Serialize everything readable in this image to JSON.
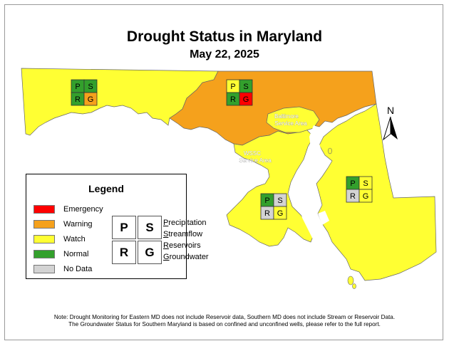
{
  "title": "Drought Status in Maryland",
  "date": "May 22, 2025",
  "north_label": "N",
  "colors": {
    "emergency": "#ff0000",
    "warning": "#f5a11c",
    "watch": "#ffff33",
    "normal": "#33a02c",
    "no_data": "#d3d3d3"
  },
  "map_labels": {
    "baltimore": [
      "Baltimore",
      "Service Area"
    ],
    "wssc": [
      "WSSC",
      "Service Area"
    ]
  },
  "regions": {
    "western": {
      "P": "normal",
      "S": "normal",
      "R": "normal",
      "G": "warning"
    },
    "central": {
      "P": "watch",
      "S": "normal",
      "R": "normal",
      "G": "emergency"
    },
    "southern": {
      "P": "normal",
      "S": "no_data",
      "R": "no_data",
      "G": "watch"
    },
    "eastern": {
      "P": "normal",
      "S": "watch",
      "R": "no_data",
      "G": "watch"
    }
  },
  "legend": {
    "title": "Legend",
    "items": [
      {
        "label": "Emergency",
        "status": "emergency"
      },
      {
        "label": "Warning",
        "status": "warning"
      },
      {
        "label": "Watch",
        "status": "watch"
      },
      {
        "label": "Normal",
        "status": "normal"
      },
      {
        "label": "No Data",
        "status": "no_data"
      }
    ],
    "grid_letters": [
      "P",
      "S",
      "R",
      "G"
    ],
    "key": [
      {
        "initial": "P",
        "rest": "recipitation"
      },
      {
        "initial": "S",
        "rest": "treamflow"
      },
      {
        "initial": "R",
        "rest": "eservoirs"
      },
      {
        "initial": "G",
        "rest": "roundwater"
      }
    ]
  },
  "notes": [
    "Note: Drought Monitoring for Eastern MD does not include Reservoir data, Southern MD does not include Stream or Reservoir Data.",
    "The Groundwater Status for Southern Maryland is based on confined and unconfined wells, please refer to the full report."
  ]
}
